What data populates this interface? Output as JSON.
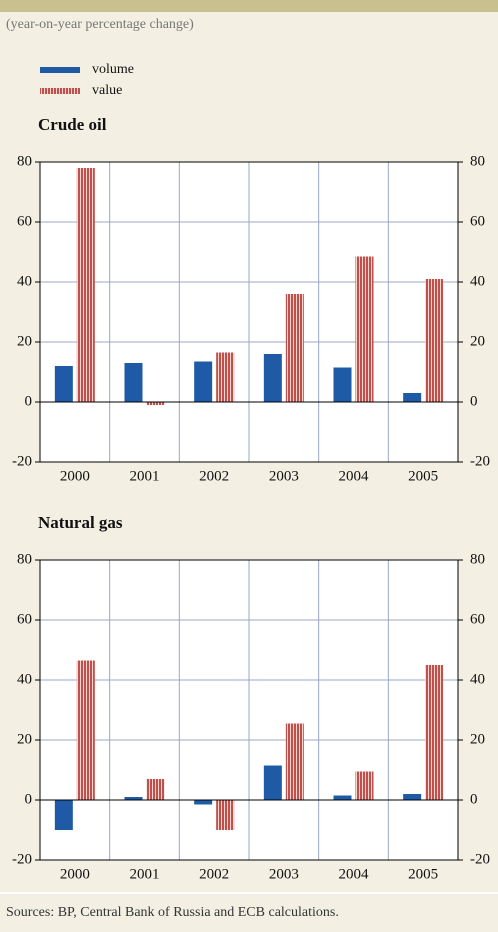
{
  "subtitle": "(year-on-year percentage change)",
  "source": "Sources: BP, Central Bank of Russia and ECB calculations.",
  "chart_data": [
    {
      "type": "bar",
      "title": "Crude oil",
      "categories": [
        "2000",
        "2001",
        "2002",
        "2003",
        "2004",
        "2005"
      ],
      "series": [
        {
          "name": "volume",
          "color": "#1f5aa6",
          "values": [
            12,
            13,
            13.5,
            16,
            11.5,
            3
          ]
        },
        {
          "name": "value",
          "color": "#c0504d",
          "values": [
            78,
            -1,
            16.5,
            36,
            48.5,
            41
          ]
        }
      ],
      "ylim": [
        -20,
        80
      ],
      "yticks": [
        -20,
        0,
        20,
        40,
        60,
        80
      ],
      "grid": true
    },
    {
      "type": "bar",
      "title": "Natural gas",
      "categories": [
        "2000",
        "2001",
        "2002",
        "2003",
        "2004",
        "2005"
      ],
      "series": [
        {
          "name": "volume",
          "color": "#1f5aa6",
          "values": [
            -10,
            1,
            -1.5,
            11.5,
            1.5,
            2
          ]
        },
        {
          "name": "value",
          "color": "#c0504d",
          "values": [
            46.5,
            7,
            -10,
            25.5,
            9.5,
            45
          ]
        }
      ],
      "ylim": [
        -20,
        80
      ],
      "yticks": [
        -20,
        0,
        20,
        40,
        60,
        80
      ],
      "grid": true
    }
  ]
}
